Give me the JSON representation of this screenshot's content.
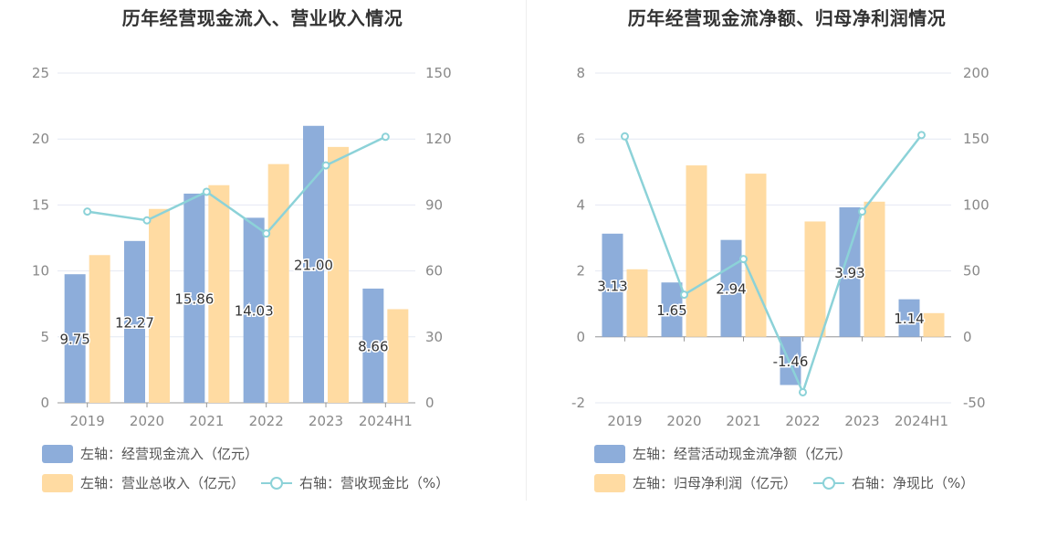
{
  "colors": {
    "bar1": "#8dadda",
    "bar2": "#ffdba2",
    "line": "#8cd2d8",
    "grid": "#e4e8f2",
    "axis_text": "#888888",
    "label_text": "#333333"
  },
  "legend_icons": {
    "line": "circle-marker-line-icon"
  },
  "chart_data": [
    {
      "type": "bar",
      "title": "历年经营现金流入、营业收入情况",
      "categories": [
        "2019",
        "2020",
        "2021",
        "2022",
        "2023",
        "2024H1"
      ],
      "y_left": {
        "ylim": [
          0,
          25
        ],
        "ticks": [
          "0",
          "5",
          "10",
          "15",
          "20",
          "25"
        ]
      },
      "y_right": {
        "ylim": [
          0,
          150
        ],
        "ticks": [
          "0",
          "30",
          "60",
          "90",
          "120",
          "150"
        ]
      },
      "series": [
        {
          "name": "左轴：经营现金流入（亿元）",
          "type": "bar",
          "axis": "left",
          "values": [
            9.75,
            12.27,
            15.86,
            14.03,
            21.0,
            8.66
          ],
          "labels": [
            "9.75",
            "12.27",
            "15.86",
            "14.03",
            "21.00",
            "8.66"
          ]
        },
        {
          "name": "左轴：营业总收入（亿元）",
          "type": "bar",
          "axis": "left",
          "values": [
            11.2,
            14.7,
            16.5,
            18.1,
            19.4,
            7.1
          ]
        },
        {
          "name": "右轴：营收现金比（%）",
          "type": "line",
          "axis": "right",
          "values": [
            87,
            83,
            96,
            77,
            108,
            121
          ]
        }
      ]
    },
    {
      "type": "bar",
      "title": "历年经营现金流净额、归母净利润情况",
      "categories": [
        "2019",
        "2020",
        "2021",
        "2022",
        "2023",
        "2024H1"
      ],
      "y_left": {
        "ylim": [
          -2,
          8
        ],
        "ticks": [
          "-2",
          "0",
          "2",
          "4",
          "6",
          "8"
        ]
      },
      "y_right": {
        "ylim": [
          -50,
          200
        ],
        "ticks": [
          "-50",
          "0",
          "50",
          "100",
          "150",
          "200"
        ]
      },
      "series": [
        {
          "name": "左轴：经营活动现金流净额（亿元）",
          "type": "bar",
          "axis": "left",
          "values": [
            3.13,
            1.65,
            2.94,
            -1.46,
            3.93,
            1.14
          ],
          "labels": [
            "3.13",
            "1.65",
            "2.94",
            "-1.46",
            "3.93",
            "1.14"
          ]
        },
        {
          "name": "左轴：归母净利润（亿元）",
          "type": "bar",
          "axis": "left",
          "values": [
            2.05,
            5.2,
            4.95,
            3.5,
            4.1,
            0.72
          ]
        },
        {
          "name": "右轴：净现比（%）",
          "type": "line",
          "axis": "right",
          "values": [
            152,
            32,
            59,
            -42,
            95,
            153
          ]
        }
      ]
    }
  ]
}
